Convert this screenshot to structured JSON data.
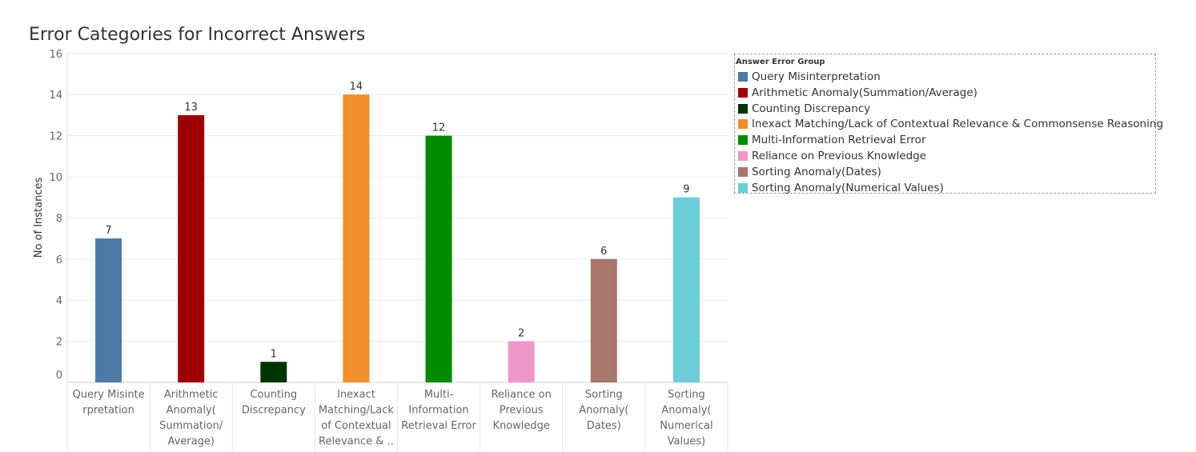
{
  "chart_data": {
    "type": "bar",
    "title": "Error Categories for Incorrect Answers",
    "ylabel": "No of Instances",
    "xlabel": "",
    "ylim": [
      0,
      16
    ],
    "yticks": [
      0,
      2,
      4,
      6,
      8,
      10,
      12,
      14,
      16
    ],
    "grid": true,
    "legend_title": "Answer Error Group",
    "legend_position": "right",
    "categories": [
      "Query Misinterpretation",
      "Arithmetic Anomaly(Summation/Average)",
      "Counting Discrepancy",
      "Inexact Matching/Lack of Contextual Relevance & Commonsense Reasoning",
      "Multi-Information Retrieval Error",
      "Reliance on Previous Knowledge",
      "Sorting Anomaly(Dates)",
      "Sorting Anomaly(Numerical Values)"
    ],
    "tick_labels": [
      [
        "Query Misinte",
        "rpretation"
      ],
      [
        "Arithmetic",
        "Anomaly(",
        "Summation/",
        "Average)"
      ],
      [
        "Counting",
        "Discrepancy"
      ],
      [
        "Inexact",
        "Matching/Lack",
        "of Contextual",
        "Relevance & .."
      ],
      [
        "Multi-",
        "Information",
        "Retrieval Error"
      ],
      [
        "Reliance on",
        "Previous",
        "Knowledge"
      ],
      [
        "Sorting",
        "Anomaly(",
        "Dates)"
      ],
      [
        "Sorting",
        "Anomaly(",
        "Numerical",
        "Values)"
      ]
    ],
    "values": [
      7,
      13,
      1,
      14,
      12,
      2,
      6,
      9
    ],
    "colors": [
      "#4e79a7",
      "#9c0000",
      "#003300",
      "#f28e2b",
      "#008a00",
      "#f097c9",
      "#a8766d",
      "#6dccda"
    ],
    "legend_labels": [
      "Query Misinterpretation",
      "Arithmetic Anomaly(Summation/Average)",
      "Counting Discrepancy",
      "Inexact Matching/Lack of Contextual Relevance & Commonsense Reasoning",
      "Multi-Information Retrieval Error",
      "Reliance on Previous Knowledge",
      "Sorting Anomaly(Dates)",
      "Sorting Anomaly(Numerical Values)"
    ]
  }
}
